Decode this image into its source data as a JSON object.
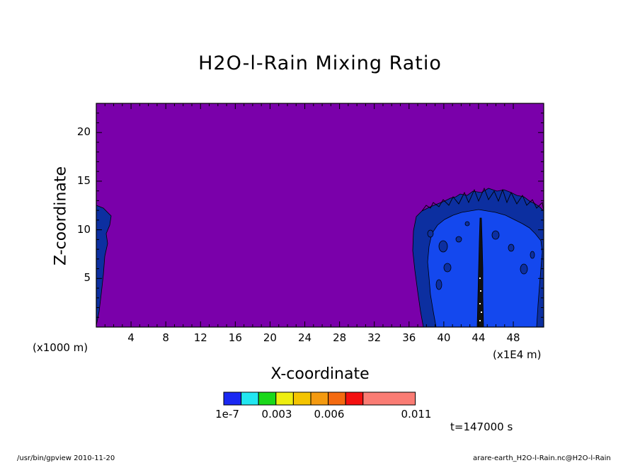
{
  "chart_data": {
    "type": "contour",
    "title": "H2O-l-Rain Mixing Ratio",
    "xlabel": "X-coordinate",
    "ylabel": "Z-coordinate",
    "x_unit_left": "(x1000 m)",
    "x_unit_right": "(x1E4 m)",
    "x_ticks": [
      "4",
      "8",
      "12",
      "16",
      "20",
      "24",
      "28",
      "32",
      "36",
      "40",
      "44",
      "48"
    ],
    "y_ticks": [
      "5",
      "10",
      "15",
      "20"
    ],
    "xlim": [
      0,
      51.5
    ],
    "ylim": [
      0,
      23
    ],
    "background_color": "#7a00aa",
    "colorbar": {
      "levels": [
        "1e-7",
        "0.003",
        "0.006",
        "0.011"
      ],
      "colors": [
        "#1a28f2",
        "#22e6f0",
        "#1ad81a",
        "#eeee10",
        "#f4c400",
        "#f49a10",
        "#f46a10",
        "#f41010",
        "#fa7c74"
      ]
    },
    "time_label": "t=147000 s",
    "regions": [
      {
        "name": "left-edge-rain",
        "value_class": "lowest",
        "x_range": [
          0,
          1.8
        ],
        "z_max": 12.5
      },
      {
        "name": "rain-column",
        "value_class": "lowest-to-second",
        "x_range": [
          36.5,
          51.5
        ],
        "z_max": 14.2
      },
      {
        "name": "core-shaft",
        "value_class": "low",
        "x_center": 44,
        "z_max": 11.5
      }
    ]
  },
  "footer": {
    "left": "/usr/bin/gpview   2010-11-20",
    "right": "arare-earth_H2O-l-Rain.nc@H2O-l-Rain"
  }
}
